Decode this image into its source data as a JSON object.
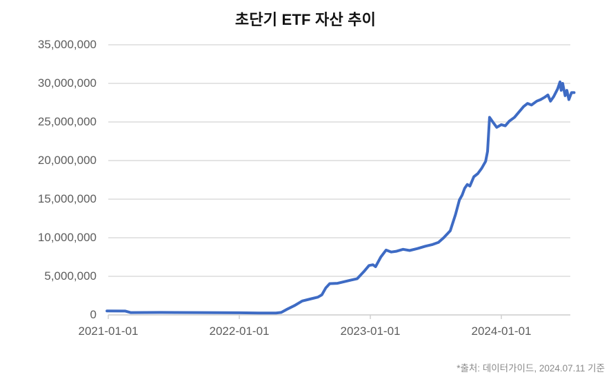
{
  "title": "초단기 ETF 자산 추이",
  "source_note": "*출처: 데이터가이드, 2024.07.11 기준",
  "colors": {
    "line": "#3E6BC4",
    "grid": "#E1E1E1",
    "axis": "#D2D2D2",
    "tick": "#CFCFCF",
    "label": "#5C5C5C",
    "title": "#121212",
    "source": "#8A8A8A",
    "background": "#FFFFFF"
  },
  "chart_data": {
    "type": "line",
    "title": "초단기 ETF 자산 추이",
    "xlabel": "",
    "ylabel": "",
    "legend": "none",
    "grid": "horizontal",
    "ylim": [
      0,
      35000000
    ],
    "xlim": [
      2020.99,
      2024.57
    ],
    "y_ticks": [
      {
        "value": 0,
        "label": "0"
      },
      {
        "value": 5000000,
        "label": "5,000,000"
      },
      {
        "value": 10000000,
        "label": "10,000,000"
      },
      {
        "value": 15000000,
        "label": "15,000,000"
      },
      {
        "value": 20000000,
        "label": "20,000,000"
      },
      {
        "value": 25000000,
        "label": "25,000,000"
      },
      {
        "value": 30000000,
        "label": "30,000,000"
      },
      {
        "value": 35000000,
        "label": "35,000,000"
      }
    ],
    "x_ticks": [
      {
        "t": 2021.0,
        "label": "2021-01-01"
      },
      {
        "t": 2022.0,
        "label": "2022-01-01"
      },
      {
        "t": 2023.0,
        "label": "2023-01-01"
      },
      {
        "t": 2024.0,
        "label": "2024-01-01"
      }
    ],
    "series": [
      {
        "name": "초단기 ETF 자산",
        "color": "#3E6BC4",
        "points": [
          [
            2020.99,
            520000
          ],
          [
            2021.13,
            500000
          ],
          [
            2021.17,
            300000
          ],
          [
            2021.4,
            320000
          ],
          [
            2021.7,
            300000
          ],
          [
            2022.0,
            280000
          ],
          [
            2022.15,
            250000
          ],
          [
            2022.28,
            250000
          ],
          [
            2022.32,
            320000
          ],
          [
            2022.36,
            700000
          ],
          [
            2022.42,
            1200000
          ],
          [
            2022.48,
            1800000
          ],
          [
            2022.55,
            2100000
          ],
          [
            2022.6,
            2300000
          ],
          [
            2022.63,
            2600000
          ],
          [
            2022.66,
            3500000
          ],
          [
            2022.69,
            4050000
          ],
          [
            2022.75,
            4100000
          ],
          [
            2022.8,
            4300000
          ],
          [
            2022.85,
            4500000
          ],
          [
            2022.9,
            4700000
          ],
          [
            2022.95,
            5600000
          ],
          [
            2022.99,
            6400000
          ],
          [
            2023.02,
            6500000
          ],
          [
            2023.04,
            6250000
          ],
          [
            2023.08,
            7500000
          ],
          [
            2023.12,
            8400000
          ],
          [
            2023.16,
            8150000
          ],
          [
            2023.2,
            8250000
          ],
          [
            2023.25,
            8500000
          ],
          [
            2023.3,
            8350000
          ],
          [
            2023.36,
            8600000
          ],
          [
            2023.42,
            8900000
          ],
          [
            2023.47,
            9100000
          ],
          [
            2023.52,
            9400000
          ],
          [
            2023.56,
            10000000
          ],
          [
            2023.61,
            10900000
          ],
          [
            2023.65,
            13000000
          ],
          [
            2023.68,
            14900000
          ],
          [
            2023.7,
            15500000
          ],
          [
            2023.72,
            16400000
          ],
          [
            2023.74,
            16900000
          ],
          [
            2023.76,
            16700000
          ],
          [
            2023.79,
            17900000
          ],
          [
            2023.82,
            18300000
          ],
          [
            2023.85,
            19000000
          ],
          [
            2023.88,
            19900000
          ],
          [
            2023.895,
            21200000
          ],
          [
            2023.91,
            25600000
          ],
          [
            2023.935,
            25000000
          ],
          [
            2023.965,
            24300000
          ],
          [
            2024.0,
            24650000
          ],
          [
            2024.03,
            24500000
          ],
          [
            2024.06,
            25100000
          ],
          [
            2024.1,
            25600000
          ],
          [
            2024.14,
            26400000
          ],
          [
            2024.17,
            27000000
          ],
          [
            2024.2,
            27400000
          ],
          [
            2024.23,
            27200000
          ],
          [
            2024.27,
            27700000
          ],
          [
            2024.3,
            27900000
          ],
          [
            2024.33,
            28200000
          ],
          [
            2024.355,
            28500000
          ],
          [
            2024.375,
            27700000
          ],
          [
            2024.4,
            28300000
          ],
          [
            2024.43,
            29300000
          ],
          [
            2024.448,
            30200000
          ],
          [
            2024.457,
            29100000
          ],
          [
            2024.468,
            30000000
          ],
          [
            2024.487,
            28400000
          ],
          [
            2024.5,
            29100000
          ],
          [
            2024.515,
            27900000
          ],
          [
            2024.535,
            28800000
          ],
          [
            2024.555,
            28800000
          ]
        ]
      }
    ],
    "source": "*출처: 데이터가이드, 2024.07.11 기준"
  }
}
